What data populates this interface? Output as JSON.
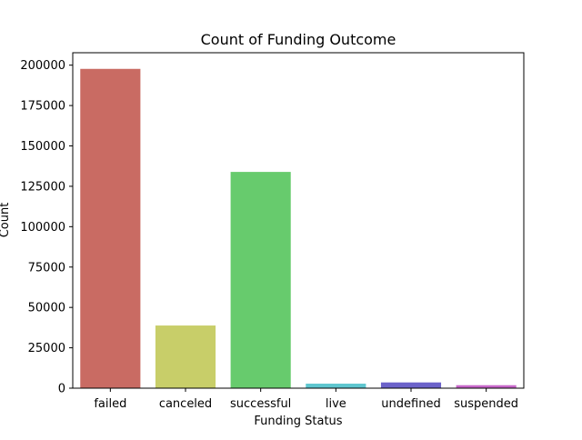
{
  "chart_data": {
    "type": "bar",
    "title": "Count of Funding Outcome",
    "xlabel": "Funding Status",
    "ylabel": "Count",
    "categories": [
      "failed",
      "canceled",
      "successful",
      "live",
      "undefined",
      "suspended"
    ],
    "values": [
      197700,
      38800,
      133900,
      2800,
      3560,
      1850
    ],
    "colors": [
      "#c96b63",
      "#c8ce69",
      "#67cb6d",
      "#5ec6cf",
      "#6b62c9",
      "#c767c9"
    ],
    "ylim": [
      0,
      207700
    ],
    "yticks": [
      0,
      25000,
      50000,
      75000,
      100000,
      125000,
      150000,
      175000,
      200000
    ],
    "ytick_labels": [
      "0",
      "25000",
      "50000",
      "75000",
      "100000",
      "125000",
      "150000",
      "175000",
      "200000"
    ],
    "grid": false,
    "legend": "none"
  }
}
